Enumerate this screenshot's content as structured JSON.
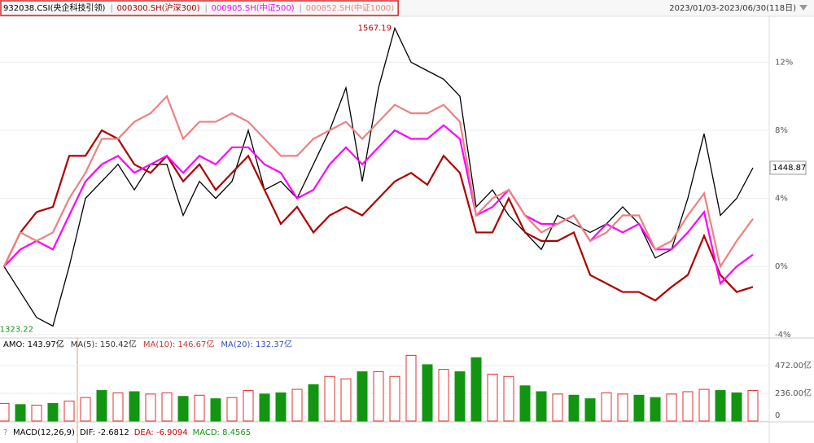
{
  "chart_data": [
    {
      "type": "line",
      "date_range": "2023/01/03-2023/06/30(118日)",
      "categories": [
        null,
        null,
        null,
        null,
        null,
        null,
        null,
        null,
        null,
        null,
        null,
        null,
        null,
        null,
        null,
        null,
        null,
        null,
        null,
        null,
        null,
        null,
        null,
        null,
        null,
        null,
        null,
        null,
        null,
        null,
        null,
        null,
        null,
        null,
        null,
        null,
        null,
        null,
        null,
        null,
        null,
        null,
        null,
        null,
        null,
        null,
        null
      ],
      "series": [
        {
          "name": "932038.CSI(央企科技引领)",
          "color": "#000000",
          "values": [
            0,
            -1.5,
            -3,
            -3.5,
            0,
            4,
            5,
            6,
            4.5,
            6,
            6,
            3,
            5,
            4,
            5,
            8,
            4.5,
            5,
            4,
            6,
            8,
            10.5,
            5,
            10.5,
            14,
            12,
            11.5,
            11,
            10,
            3.5,
            4.5,
            3,
            2,
            1,
            3,
            2.5,
            2,
            2.5,
            3.5,
            2.5,
            0.5,
            1,
            4,
            7.8,
            3,
            4,
            5.8
          ]
        },
        {
          "name": "000300.SH(沪深300)",
          "color": "#b00000",
          "values": [
            0,
            2,
            3.2,
            3.5,
            6.5,
            6.5,
            8,
            7.5,
            6,
            5.5,
            6.5,
            5,
            6,
            4.5,
            5.5,
            6.5,
            4.5,
            2.5,
            3.5,
            2,
            3,
            3.5,
            3,
            4,
            5,
            5.5,
            4.8,
            6.5,
            5.5,
            2,
            2,
            4,
            2,
            1.5,
            1.5,
            2,
            -0.5,
            -1,
            -1.5,
            -1.5,
            -2,
            -1.2,
            -0.5,
            1.8,
            -0.5,
            -1.5,
            -1.2
          ]
        },
        {
          "name": "000905.SH(中证500)",
          "color": "#ff00ff",
          "values": [
            0,
            1,
            1.5,
            1,
            3,
            5,
            6,
            6.5,
            5.5,
            6,
            6.5,
            5.5,
            6.5,
            6,
            7,
            7,
            6,
            5.5,
            4,
            4.5,
            6,
            7,
            6,
            7,
            8,
            7.5,
            7.5,
            8.3,
            7.5,
            3,
            3.5,
            4.5,
            3,
            2.5,
            2.5,
            3,
            1.5,
            2.5,
            2,
            2.5,
            1,
            1,
            2,
            3.2,
            -1,
            0,
            0.7
          ]
        },
        {
          "name": "000852.SH(中证1000)",
          "color": "#f08080",
          "values": [
            0,
            2,
            1.5,
            2,
            4,
            5.5,
            7.5,
            7.5,
            8.5,
            9,
            10,
            7.5,
            8.5,
            8.5,
            9,
            8.5,
            7.5,
            6.5,
            6.5,
            7.5,
            8,
            8.5,
            7.5,
            8.5,
            9.5,
            9,
            9,
            9.5,
            8.5,
            3,
            4,
            4.5,
            3,
            2,
            2.5,
            3,
            1.5,
            2,
            3,
            3,
            1,
            1.5,
            3,
            4.3,
            0,
            1.5,
            2.8
          ]
        }
      ],
      "annotations": [
        {
          "text": "1567.19",
          "color": "#cc0000"
        },
        {
          "text": "1323.22",
          "color": "#129612"
        },
        {
          "text": "1448.87",
          "color": "#000000"
        }
      ],
      "ylim": [
        -4.2,
        14.7
      ],
      "yticks": [
        {
          "value": -4,
          "label": "-4%"
        },
        {
          "value": 0,
          "label": "0%"
        },
        {
          "value": 4,
          "label": "4%"
        },
        {
          "value": 8,
          "label": "8%"
        },
        {
          "value": 12,
          "label": "12%"
        }
      ],
      "grid": true
    },
    {
      "type": "bar",
      "header": [
        {
          "text": "AMO: 143.97亿",
          "color": "#000000"
        },
        {
          "text": "MA(5): 150.42亿",
          "color": "#333333"
        },
        {
          "text": "MA(10): 146.67亿",
          "color": "#d03030"
        },
        {
          "text": "MA(20): 132.37亿",
          "color": "#3050c0"
        }
      ],
      "categories": [
        null,
        null,
        null,
        null,
        null,
        null,
        null,
        null,
        null,
        null,
        null,
        null,
        null,
        null,
        null,
        null,
        null,
        null,
        null,
        null,
        null,
        null,
        null,
        null,
        null,
        null,
        null,
        null,
        null,
        null,
        null,
        null,
        null,
        null,
        null,
        null,
        null,
        null,
        null,
        null,
        null,
        null,
        null,
        null,
        null,
        null,
        null
      ],
      "values": [
        150,
        140,
        135,
        150,
        170,
        200,
        260,
        240,
        250,
        230,
        240,
        210,
        220,
        190,
        200,
        260,
        230,
        240,
        270,
        310,
        380,
        360,
        420,
        420,
        380,
        560,
        480,
        440,
        420,
        540,
        400,
        380,
        300,
        250,
        230,
        220,
        190,
        240,
        230,
        220,
        200,
        230,
        250,
        270,
        260,
        240,
        260
      ],
      "colors": [
        "#e03030",
        "#129612",
        "#e03030",
        "#129612",
        "#e03030",
        "#e03030",
        "#129612",
        "#e03030",
        "#129612",
        "#e03030",
        "#e03030",
        "#129612",
        "#e03030",
        "#129612",
        "#e03030",
        "#e03030",
        "#129612",
        "#129612",
        "#e03030",
        "#129612",
        "#e03030",
        "#e03030",
        "#129612",
        "#e03030",
        "#e03030",
        "#e03030",
        "#129612",
        "#e03030",
        "#129612",
        "#129612",
        "#e03030",
        "#e03030",
        "#129612",
        "#129612",
        "#e03030",
        "#129612",
        "#129612",
        "#e03030",
        "#e03030",
        "#129612",
        "#129612",
        "#e03030",
        "#e03030",
        "#e03030",
        "#129612",
        "#129612",
        "#e03030"
      ],
      "hollow_color": "#e03030",
      "ylim": [
        0,
        618
      ],
      "yticks": [
        0,
        {
          "value": 236,
          "label": "236.00亿"
        },
        {
          "value": 472,
          "label": "472.00亿"
        }
      ],
      "grid": true
    },
    {
      "type": "macd",
      "header": [
        {
          "text": "MACD(12,26,9)",
          "color": "#000000"
        },
        {
          "text": "DIF: -2.6812",
          "color": "#000000"
        },
        {
          "text": "DEA: -6.9094",
          "color": "#cc0000"
        },
        {
          "text": "MACD: 8.4565",
          "color": "#129612"
        }
      ]
    }
  ]
}
